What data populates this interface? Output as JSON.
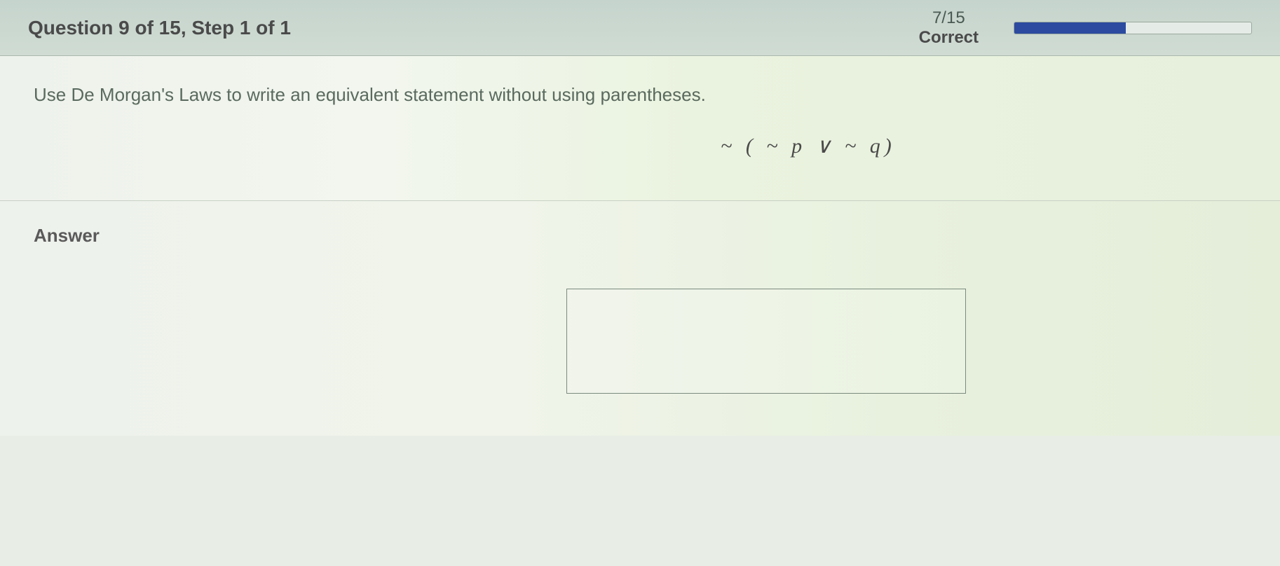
{
  "header": {
    "question_title": "Question 9 of 15, Step 1 of 1",
    "score_value": "7/15",
    "score_label": "Correct",
    "progress_percent": 47
  },
  "content": {
    "instruction": "Use De Morgan's Laws to write an equivalent statement without using parentheses.",
    "expression": "~ ( ~ p ∨ ~ q)"
  },
  "answer": {
    "label": "Answer",
    "input_value": ""
  },
  "colors": {
    "header_bg_top": "#c5d4cd",
    "header_bg_bottom": "#d0dcd3",
    "progress_fill": "#2b4aa0",
    "progress_bg": "#e5ece7",
    "body_bg_left": "#eef2ec",
    "body_bg_right": "#e6f0dc",
    "text_primary": "#4a4a4a",
    "text_secondary": "#5a6a5e"
  },
  "typography": {
    "title_fontsize": 28,
    "instruction_fontsize": 26,
    "expression_fontsize": 30,
    "expression_family": "Times New Roman"
  }
}
